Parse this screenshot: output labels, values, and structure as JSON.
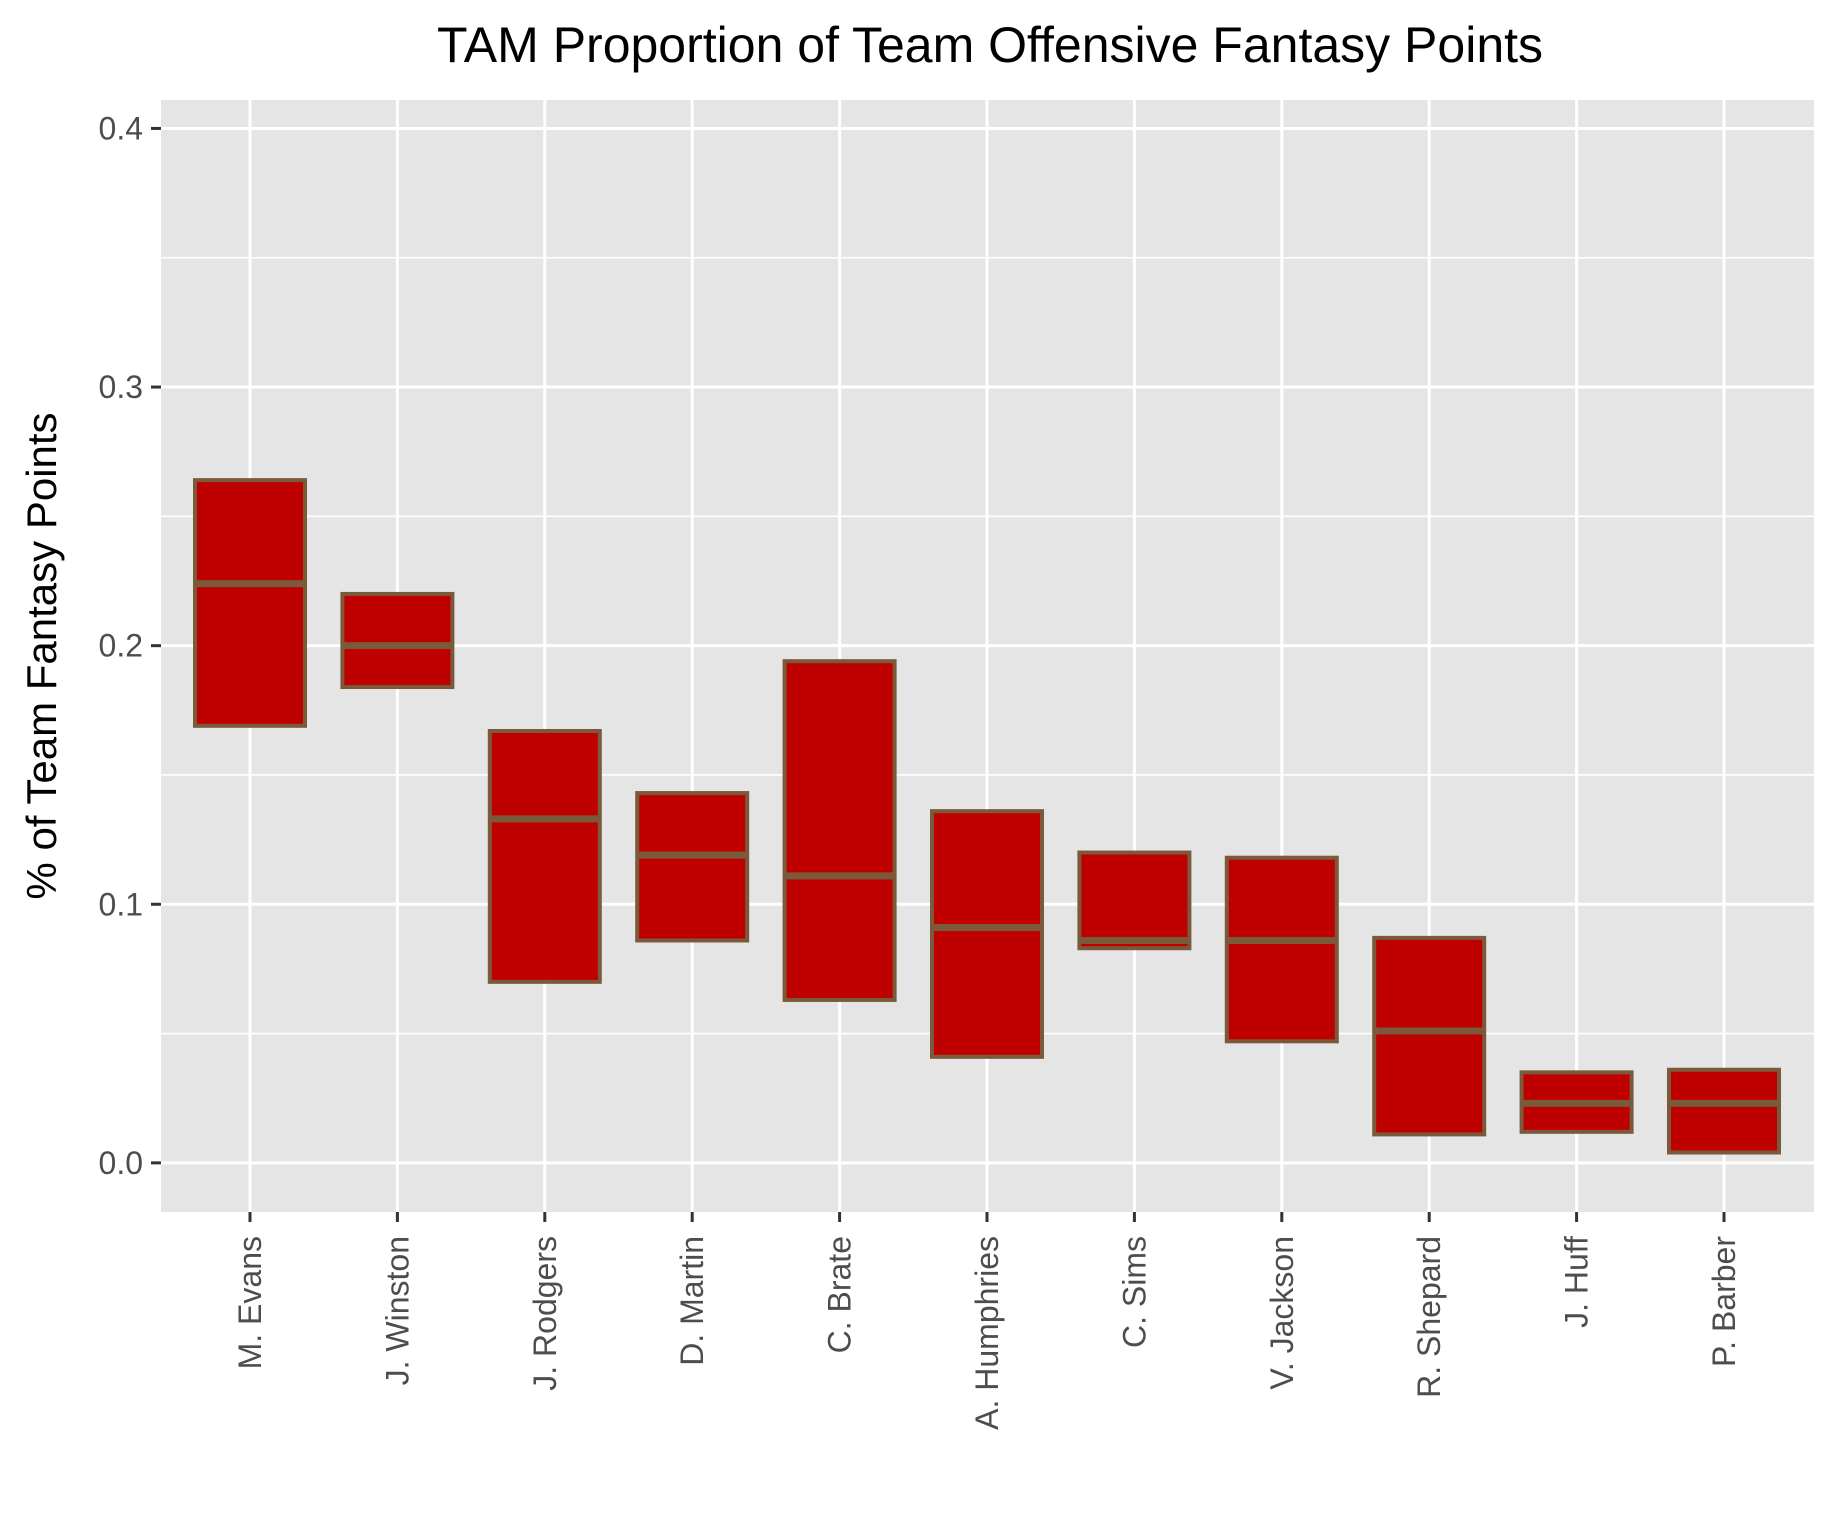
{
  "chart_data": {
    "type": "boxplot",
    "title": "TAM Proportion of Team Offensive Fantasy Points",
    "xlabel": "",
    "ylabel": "% of Team Fantasy Points",
    "ylim": [
      -0.019,
      0.411
    ],
    "yticks": [
      "0.0",
      "0.1",
      "0.2",
      "0.3",
      "0.4"
    ],
    "ytick_values": [
      0.0,
      0.1,
      0.2,
      0.3,
      0.4
    ],
    "grid": true,
    "categories": [
      "M. Evans",
      "J. Winston",
      "J. Rodgers",
      "D. Martin",
      "C. Brate",
      "A. Humphries",
      "C. Sims",
      "V. Jackson",
      "R. Shepard",
      "J. Huff",
      "P. Barber"
    ],
    "boxes": [
      {
        "lower": 0.169,
        "median": 0.224,
        "upper": 0.264
      },
      {
        "lower": 0.184,
        "median": 0.2,
        "upper": 0.22
      },
      {
        "lower": 0.07,
        "median": 0.133,
        "upper": 0.167
      },
      {
        "lower": 0.086,
        "median": 0.119,
        "upper": 0.143
      },
      {
        "lower": 0.063,
        "median": 0.111,
        "upper": 0.194
      },
      {
        "lower": 0.041,
        "median": 0.091,
        "upper": 0.136
      },
      {
        "lower": 0.083,
        "median": 0.086,
        "upper": 0.12
      },
      {
        "lower": 0.047,
        "median": 0.086,
        "upper": 0.118
      },
      {
        "lower": 0.011,
        "median": 0.051,
        "upper": 0.087
      },
      {
        "lower": 0.012,
        "median": 0.023,
        "upper": 0.035
      },
      {
        "lower": 0.004,
        "median": 0.023,
        "upper": 0.036
      }
    ],
    "colors": {
      "box_fill": "#bf0000",
      "box_stroke": "#7a5a3a",
      "panel_background": "#e5e5e5",
      "grid": "#ffffff",
      "tick": "#333333"
    }
  }
}
